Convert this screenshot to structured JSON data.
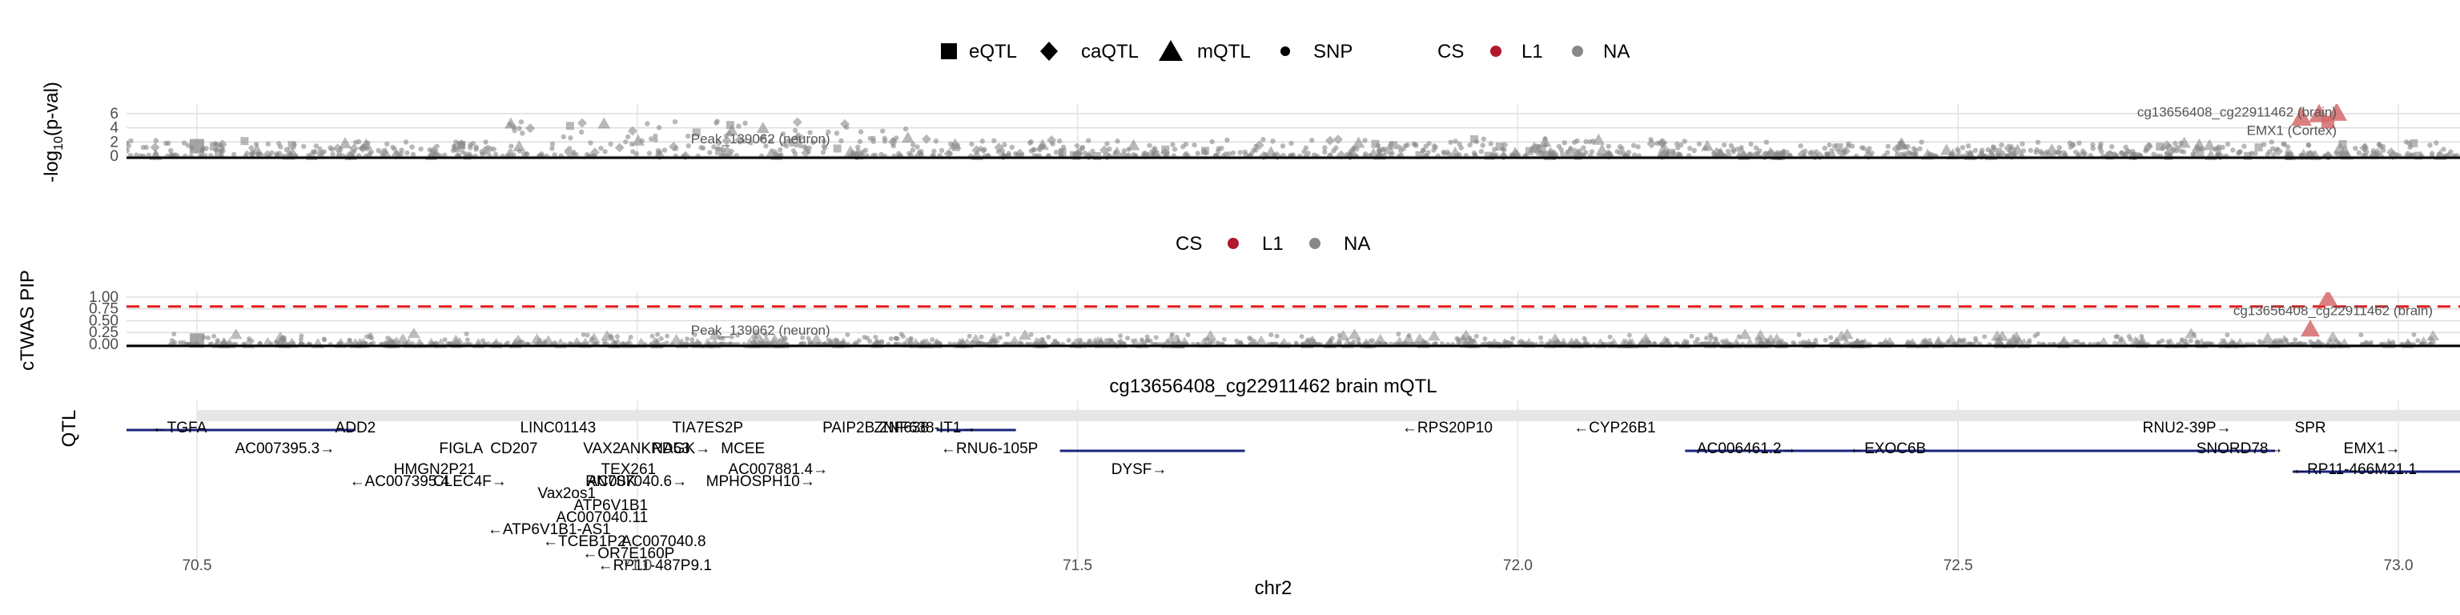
{
  "chart_data": [
    {
      "type": "scatter",
      "panel": "qtl",
      "ylabel": "-log10(p-val)",
      "y_ticks": [
        "0",
        "2",
        "4",
        "6"
      ],
      "ylim": [
        0,
        7
      ],
      "xlim": [
        70.42,
        73.07
      ],
      "legend_shape": {
        "position": "top",
        "items": [
          {
            "label": "eQTL",
            "shape": "square"
          },
          {
            "label": "caQTL",
            "shape": "diamond"
          },
          {
            "label": "mQTL",
            "shape": "triangle"
          },
          {
            "label": "SNP",
            "shape": "dot"
          }
        ]
      },
      "legend_cs": {
        "title": "CS",
        "items": [
          {
            "label": "L1",
            "color": "#b2182b"
          },
          {
            "label": "NA",
            "color": "#888888"
          }
        ]
      },
      "annotations": [
        {
          "text": "cg13656408_cg22911462 (brain)",
          "x": 72.93,
          "y": 5.6
        },
        {
          "text": "EMX1 (Cortex)",
          "x": 72.93,
          "y": 3.0
        },
        {
          "text": "Peak_139062 (neuron)",
          "x": 71.14,
          "y": 1.8
        }
      ],
      "highlight": [
        {
          "x": 72.91,
          "y": 5.8,
          "shape": "triangle",
          "cs": "L1"
        },
        {
          "x": 72.93,
          "y": 6.0,
          "shape": "triangle",
          "cs": "L1"
        },
        {
          "x": 72.92,
          "y": 4.8,
          "shape": "square",
          "cs": "L1"
        },
        {
          "x": 72.89,
          "y": 5.3,
          "shape": "triangle",
          "cs": "L1"
        }
      ],
      "density": [
        {
          "from": 70.42,
          "to": 70.85,
          "ymax": 2.2
        },
        {
          "from": 70.85,
          "to": 71.32,
          "ymax": 5.0
        },
        {
          "from": 71.32,
          "to": 72.2,
          "ymax": 2.5
        },
        {
          "from": 72.2,
          "to": 73.07,
          "ymax": 2.0
        }
      ]
    },
    {
      "type": "scatter",
      "panel": "ctwas",
      "ylabel": "cTWAS PIP",
      "y_ticks": [
        "0.00",
        "0.25",
        "0.50",
        "0.75",
        "1.00"
      ],
      "ylim": [
        0,
        1.05
      ],
      "threshold": 0.8,
      "threshold_color": "#e41a1c",
      "legend_cs": {
        "title": "CS",
        "items": [
          {
            "label": "L1",
            "color": "#b2182b"
          },
          {
            "label": "NA",
            "color": "#888888"
          }
        ]
      },
      "annotations": [
        {
          "text": "cg13656408_cg22911462 (brain)",
          "x": 72.93,
          "y": 0.62
        },
        {
          "text": "Peak_139062 (neuron)",
          "x": 71.14,
          "y": 0.2
        }
      ],
      "highlight": [
        {
          "x": 72.92,
          "y": 0.95,
          "shape": "triangle",
          "cs": "L1"
        },
        {
          "x": 72.9,
          "y": 0.3,
          "shape": "triangle",
          "cs": "L1"
        }
      ]
    },
    {
      "type": "gene_track",
      "panel": "genes",
      "ylabel": "QTL",
      "title": "cg13656408_cg22911462 brain mQTL",
      "xlabel": "chr2",
      "x_ticks": [
        "70.5",
        "71.0",
        "71.5",
        "72.0",
        "72.5",
        "73.0"
      ],
      "x_tick_values": [
        70.5,
        71.0,
        71.5,
        72.0,
        72.5,
        73.0
      ],
      "qtl_range": [
        70.5,
        73.07
      ],
      "gene_color": "#1a237e",
      "genes": [
        {
          "label": "←TGFA",
          "x": 70.48,
          "row": 0
        },
        {
          "label": "ADD2",
          "x": 70.68,
          "row": 0
        },
        {
          "label": "AC007395.3→",
          "x": 70.6,
          "row": 1
        },
        {
          "label": "FIGLA",
          "x": 70.8,
          "row": 1
        },
        {
          "label": "CD207",
          "x": 70.86,
          "row": 1
        },
        {
          "label": "LINC01143",
          "x": 70.91,
          "row": 0
        },
        {
          "label": "VAX2",
          "x": 70.96,
          "row": 1
        },
        {
          "label": "ANKRD53",
          "x": 71.02,
          "row": 1
        },
        {
          "label": "RN7SK",
          "x": 70.97,
          "row": 3
        },
        {
          "label": "TEX261",
          "x": 70.99,
          "row": 2
        },
        {
          "label": "NAGK→",
          "x": 71.05,
          "row": 1
        },
        {
          "label": "MCEE",
          "x": 71.12,
          "row": 1
        },
        {
          "label": "AC007881.4→",
          "x": 71.16,
          "row": 2
        },
        {
          "label": "MPHOSPH10→",
          "x": 71.14,
          "row": 3
        },
        {
          "label": "TIA7ES2P",
          "x": 71.08,
          "row": 0
        },
        {
          "label": "PAIP2B",
          "x": 71.24,
          "row": 0
        },
        {
          "label": "ZNF638-IT1→",
          "x": 71.33,
          "row": 0
        },
        {
          "label": "ZNF638",
          "x": 71.3,
          "row": 0
        },
        {
          "label": "←RNU6-105P",
          "x": 71.4,
          "row": 1
        },
        {
          "label": "DYSF→",
          "x": 71.57,
          "row": 2
        },
        {
          "label": "HMGN2P21",
          "x": 70.77,
          "row": 2
        },
        {
          "label": "←AC007395.4",
          "x": 70.73,
          "row": 3
        },
        {
          "label": "CLEC4F→",
          "x": 70.81,
          "row": 3
        },
        {
          "label": "Vax2os1",
          "x": 70.92,
          "row": 4
        },
        {
          "label": "AC007040.6→",
          "x": 71.0,
          "row": 3
        },
        {
          "label": "ATP6V1B1",
          "x": 70.97,
          "row": 5
        },
        {
          "label": "AC007040.11",
          "x": 70.96,
          "row": 6
        },
        {
          "label": "←ATP6V1B1-AS1",
          "x": 70.9,
          "row": 7
        },
        {
          "label": "←TCEB1P2",
          "x": 70.94,
          "row": 8
        },
        {
          "label": "AC007040.8",
          "x": 71.03,
          "row": 8
        },
        {
          "label": "←OR7E160P",
          "x": 70.99,
          "row": 9
        },
        {
          "label": "←RP11-487P9.1",
          "x": 71.02,
          "row": 10
        },
        {
          "label": "←RPS20P10",
          "x": 71.92,
          "row": 0
        },
        {
          "label": "←CYP26B1",
          "x": 72.11,
          "row": 0
        },
        {
          "label": "AC006461.2→",
          "x": 72.26,
          "row": 1
        },
        {
          "label": "←EXOC6B",
          "x": 72.42,
          "row": 1
        },
        {
          "label": "RNU2-39P→",
          "x": 72.76,
          "row": 0
        },
        {
          "label": "SNORD78→",
          "x": 72.82,
          "row": 1
        },
        {
          "label": "SPR",
          "x": 72.9,
          "row": 0
        },
        {
          "label": "EMX1→",
          "x": 72.97,
          "row": 1
        },
        {
          "label": "←RP11-466M21.1",
          "x": 72.95,
          "row": 2
        }
      ]
    }
  ]
}
